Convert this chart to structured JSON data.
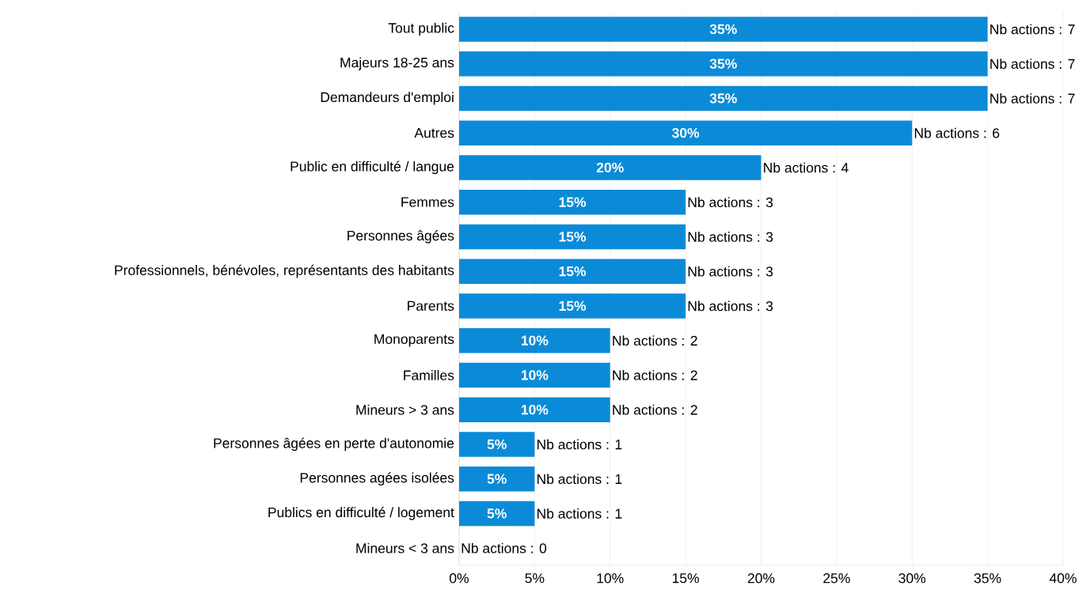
{
  "chart_data": {
    "type": "bar",
    "orientation": "horizontal",
    "categories": [
      "Tout public",
      "Majeurs 18-25 ans",
      "Demandeurs d'emploi",
      "Autres",
      "Public en difficulté / langue",
      "Femmes",
      "Personnes âgées",
      "Professionnels, bénévoles, représentants des habitants",
      "Parents",
      "Monoparents",
      "Familles",
      "Mineurs > 3 ans",
      "Personnes âgées en perte d'autonomie",
      "Personnes agées isolées",
      "Publics en difficulté / logement",
      "Mineurs < 3 ans"
    ],
    "values": [
      35,
      35,
      35,
      30,
      20,
      15,
      15,
      15,
      15,
      10,
      10,
      10,
      5,
      5,
      5,
      0
    ],
    "value_labels": [
      "35%",
      "35%",
      "35%",
      "30%",
      "20%",
      "15%",
      "15%",
      "15%",
      "15%",
      "10%",
      "10%",
      "10%",
      "5%",
      "5%",
      "5%",
      null
    ],
    "color": "#0b8bd7",
    "xlim": [
      0,
      40
    ],
    "xticks": [
      {
        "value": 0,
        "label": "0%"
      },
      {
        "value": 5,
        "label": "5%"
      },
      {
        "value": 10,
        "label": "10%"
      },
      {
        "value": 15,
        "label": "15%"
      },
      {
        "value": 20,
        "label": "20%"
      },
      {
        "value": 25,
        "label": "25%"
      },
      {
        "value": 30,
        "label": "30%"
      },
      {
        "value": 35,
        "label": "35%"
      },
      {
        "value": 40,
        "label": "40%"
      }
    ],
    "grid": "x",
    "annotations": [
      {
        "text": "Nb actions : 7",
        "x": 35,
        "y": "Tout public"
      },
      {
        "text": "Nb actions : 7",
        "x": 35,
        "y": "Majeurs 18-25 ans"
      },
      {
        "text": "Nb actions : 7",
        "x": 35,
        "y": "Demandeurs d'emploi"
      },
      {
        "text": "Nb actions : 6",
        "x": 30,
        "y": "Autres"
      },
      {
        "text": "Nb actions : 4",
        "x": 20,
        "y": "Public en difficulté / langue"
      },
      {
        "text": "Nb actions : 3",
        "x": 15,
        "y": "Femmes"
      },
      {
        "text": "Nb actions : 3",
        "x": 15,
        "y": "Personnes âgées"
      },
      {
        "text": "Nb actions : 3",
        "x": 15,
        "y": "Professionnels, bénévoles, représentants des habitants"
      },
      {
        "text": "Nb actions : 3",
        "x": 15,
        "y": "Parents"
      },
      {
        "text": "Nb actions : 2",
        "x": 10,
        "y": "Monoparents"
      },
      {
        "text": "Nb actions : 2",
        "x": 10,
        "y": "Familles"
      },
      {
        "text": "Nb actions : 2",
        "x": 10,
        "y": "Mineurs > 3 ans"
      },
      {
        "text": "Nb actions : 1",
        "x": 5,
        "y": "Personnes âgées en perte d'autonomie"
      },
      {
        "text": "Nb actions : 1",
        "x": 5,
        "y": "Personnes agées isolées"
      },
      {
        "text": "Nb actions : 1",
        "x": 5,
        "y": "Publics en difficulté / logement"
      },
      {
        "text": "Nb actions : 0",
        "x": 0,
        "y": "Mineurs < 3 ans"
      }
    ]
  }
}
